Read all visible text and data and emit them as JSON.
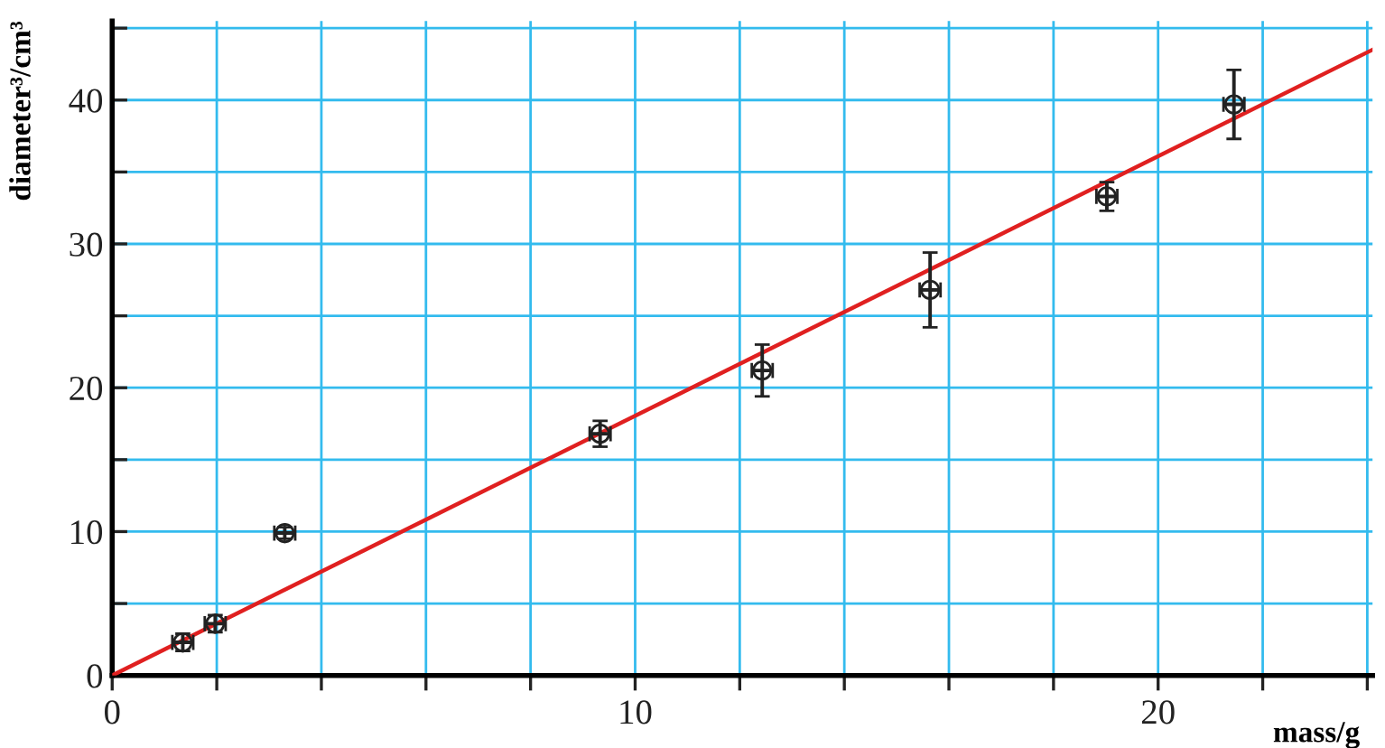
{
  "chart_data": {
    "type": "scatter",
    "xlabel": "mass/g",
    "ylabel": "diameter³/cm³",
    "xlim": [
      0,
      24.1
    ],
    "ylim": [
      0,
      45.5
    ],
    "xticks": [
      0,
      {
        "value": 2,
        "label": null
      },
      {
        "value": 4,
        "label": null
      },
      {
        "value": 6,
        "label": null
      },
      {
        "value": 8,
        "label": null
      },
      10,
      {
        "value": 12,
        "label": null
      },
      {
        "value": 14,
        "label": null
      },
      {
        "value": 16,
        "label": null
      },
      {
        "value": 18,
        "label": null
      },
      20,
      {
        "value": 22,
        "label": null
      },
      {
        "value": 24,
        "label": null
      }
    ],
    "yticks": [
      0,
      {
        "value": 5,
        "label": null
      },
      10,
      {
        "value": 15,
        "label": null
      },
      20,
      {
        "value": 25,
        "label": null
      },
      30,
      {
        "value": 35,
        "label": null
      },
      40,
      {
        "value": 45,
        "label": null
      }
    ],
    "grid": true,
    "series": [
      {
        "color": "#222222",
        "marker": "circle",
        "x": [
          1.35,
          1.97,
          3.3,
          9.33,
          12.43,
          15.64,
          19.02,
          21.45
        ],
        "values": [
          2.3,
          3.6,
          9.9,
          16.8,
          21.2,
          26.8,
          33.3,
          39.7
        ],
        "errors": [
          0.6,
          0.6,
          0.4,
          0.9,
          1.8,
          2.6,
          1.0,
          2.4
        ],
        "xerrors": [
          0.2,
          0.2,
          0.2,
          0.2,
          0.2,
          0.2,
          0.2,
          0.2
        ]
      },
      {
        "type": "line",
        "color": "#e02020",
        "x": [
          0,
          24.1
        ],
        "values": [
          0,
          43.5
        ]
      }
    ]
  }
}
